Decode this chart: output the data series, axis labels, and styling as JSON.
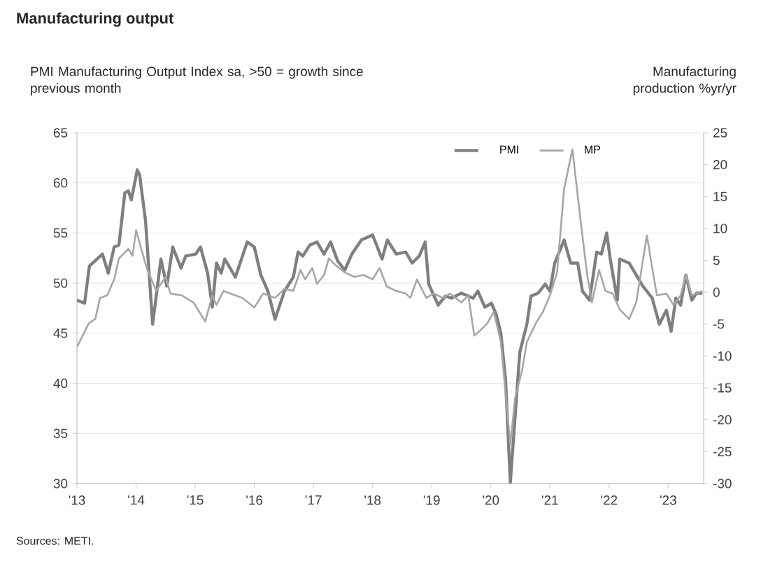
{
  "chart_data": {
    "type": "line",
    "title": "Manufacturing output",
    "ylabel": "PMI Manufacturing Output Index sa, >50 = growth since previous month",
    "y2label": "Manufacturing production %yr/yr",
    "annotations": [
      "Sources: METI."
    ],
    "xlim": [
      2013,
      2023.6
    ],
    "xticks": [
      {
        "value": 2013,
        "label": "'13"
      },
      {
        "value": 2014,
        "label": "'14"
      },
      {
        "value": 2015,
        "label": "'15"
      },
      {
        "value": 2016,
        "label": "'16"
      },
      {
        "value": 2017,
        "label": "'17"
      },
      {
        "value": 2018,
        "label": "'18"
      },
      {
        "value": 2019,
        "label": "'19"
      },
      {
        "value": 2020,
        "label": "'20"
      },
      {
        "value": 2021,
        "label": "'21"
      },
      {
        "value": 2022,
        "label": "'22"
      },
      {
        "value": 2023,
        "label": "'23"
      }
    ],
    "ylim": [
      30,
      65
    ],
    "yticks": [
      30,
      35,
      40,
      45,
      50,
      55,
      60,
      65
    ],
    "y2lim": [
      -30,
      25
    ],
    "y2ticks": [
      -30,
      -25,
      -20,
      -15,
      -10,
      -5,
      0,
      5,
      10,
      15,
      20,
      25
    ],
    "grid": "y",
    "legend": "top right",
    "marker": "none",
    "line_style": "solid",
    "series": [
      {
        "name": "PMI",
        "color": "#7f7f7f",
        "x": [
          2013.0,
          2013.13,
          2013.21,
          2013.43,
          2013.53,
          2013.63,
          2013.71,
          2013.81,
          2013.87,
          2013.92,
          2014.02,
          2014.06,
          2014.16,
          2014.28,
          2014.42,
          2014.52,
          2014.62,
          2014.76,
          2014.84,
          2015.01,
          2015.09,
          2015.21,
          2015.29,
          2015.36,
          2015.44,
          2015.5,
          2015.68,
          2015.88,
          2016.0,
          2016.11,
          2016.23,
          2016.35,
          2016.51,
          2016.66,
          2016.74,
          2016.82,
          2016.94,
          2017.06,
          2017.18,
          2017.29,
          2017.41,
          2017.53,
          2017.65,
          2017.81,
          2018.0,
          2018.16,
          2018.25,
          2018.4,
          2018.56,
          2018.67,
          2018.79,
          2018.89,
          2018.95,
          2019.11,
          2019.23,
          2019.34,
          2019.5,
          2019.62,
          2019.7,
          2019.78,
          2019.9,
          2020.01,
          2020.09,
          2020.17,
          2020.25,
          2020.33,
          2020.41,
          2020.49,
          2020.61,
          2020.68,
          2020.8,
          2020.92,
          2021.0,
          2021.08,
          2021.24,
          2021.35,
          2021.47,
          2021.55,
          2021.67,
          2021.79,
          2021.87,
          2021.96,
          2022.02,
          2022.14,
          2022.18,
          2022.34,
          2022.57,
          2022.73,
          2022.85,
          2022.97,
          2023.05,
          2023.13,
          2023.21,
          2023.3,
          2023.4,
          2023.48,
          2023.58
        ],
        "values": [
          48.3,
          48.0,
          51.7,
          52.9,
          51.0,
          53.6,
          53.8,
          59.0,
          59.2,
          58.3,
          61.3,
          60.8,
          56.2,
          45.9,
          52.4,
          49.7,
          53.6,
          51.5,
          52.7,
          52.9,
          53.6,
          51.0,
          47.6,
          52.0,
          51.0,
          52.4,
          50.6,
          54.1,
          53.6,
          50.8,
          49.2,
          46.4,
          49.2,
          50.6,
          53.1,
          52.7,
          53.8,
          54.1,
          52.9,
          54.1,
          52.2,
          51.3,
          52.9,
          54.3,
          54.8,
          52.4,
          54.3,
          52.9,
          53.1,
          52.0,
          52.7,
          54.1,
          49.9,
          47.8,
          48.7,
          48.5,
          49.0,
          48.7,
          48.5,
          49.2,
          47.6,
          48.0,
          46.9,
          45.0,
          40.3,
          30.1,
          36.6,
          43.1,
          45.9,
          48.7,
          49.0,
          49.9,
          49.2,
          52.0,
          54.3,
          52.0,
          52.0,
          49.2,
          48.3,
          53.1,
          52.9,
          55.0,
          52.4,
          48.3,
          52.4,
          52.0,
          49.7,
          48.5,
          45.9,
          47.3,
          45.2,
          48.5,
          47.8,
          50.8,
          48.3,
          49.0,
          49.0
        ]
      },
      {
        "name": "MP",
        "color": "#a6a6a6",
        "axis": "y2",
        "x": [
          2013.0,
          2013.2,
          2013.31,
          2013.39,
          2013.51,
          2013.63,
          2013.71,
          2013.87,
          2013.94,
          2014.0,
          2014.1,
          2014.18,
          2014.34,
          2014.5,
          2014.58,
          2014.77,
          2014.97,
          2015.17,
          2015.29,
          2015.36,
          2015.48,
          2015.68,
          2015.8,
          2016.0,
          2016.15,
          2016.35,
          2016.51,
          2016.66,
          2016.78,
          2016.86,
          2016.98,
          2017.06,
          2017.18,
          2017.26,
          2017.38,
          2017.53,
          2017.69,
          2017.85,
          2018.0,
          2018.12,
          2018.24,
          2018.4,
          2018.56,
          2018.64,
          2018.75,
          2018.91,
          2019.03,
          2019.19,
          2019.31,
          2019.5,
          2019.62,
          2019.72,
          2019.82,
          2019.94,
          2020.05,
          2020.17,
          2020.25,
          2020.33,
          2020.41,
          2020.53,
          2020.61,
          2020.76,
          2020.88,
          2021.0,
          2021.12,
          2021.24,
          2021.38,
          2021.51,
          2021.63,
          2021.71,
          2021.83,
          2021.94,
          2022.06,
          2022.18,
          2022.34,
          2022.46,
          2022.54,
          2022.64,
          2022.73,
          2022.81,
          2022.97,
          2023.09,
          2023.21,
          2023.3,
          2023.4,
          2023.58
        ],
        "values": [
          -8.6,
          -4.9,
          -4.2,
          -0.9,
          -0.5,
          2.0,
          5.3,
          6.8,
          5.7,
          9.7,
          6.4,
          3.8,
          0.2,
          2.4,
          -0.2,
          -0.5,
          -1.6,
          -4.6,
          -0.5,
          -2.0,
          0.2,
          -0.5,
          -0.9,
          -2.4,
          -0.2,
          -0.9,
          0.5,
          0.2,
          3.5,
          2.0,
          3.8,
          1.3,
          2.7,
          5.3,
          4.2,
          3.1,
          2.4,
          2.7,
          2.0,
          3.8,
          0.9,
          0.2,
          -0.2,
          -0.9,
          2.0,
          -0.9,
          -0.2,
          -0.9,
          -0.2,
          -1.6,
          -0.5,
          -6.8,
          -6.0,
          -4.9,
          -3.1,
          -7.8,
          -15.9,
          -23.9,
          -16.6,
          -12.2,
          -7.8,
          -4.9,
          -3.1,
          -0.5,
          3.1,
          16.2,
          22.4,
          11.9,
          2.7,
          -1.6,
          3.5,
          0.2,
          -0.2,
          -2.7,
          -4.2,
          -1.6,
          3.1,
          8.9,
          3.8,
          -0.5,
          -0.2,
          -2.0,
          -0.5,
          2.7,
          -0.5,
          0.2
        ]
      }
    ]
  }
}
